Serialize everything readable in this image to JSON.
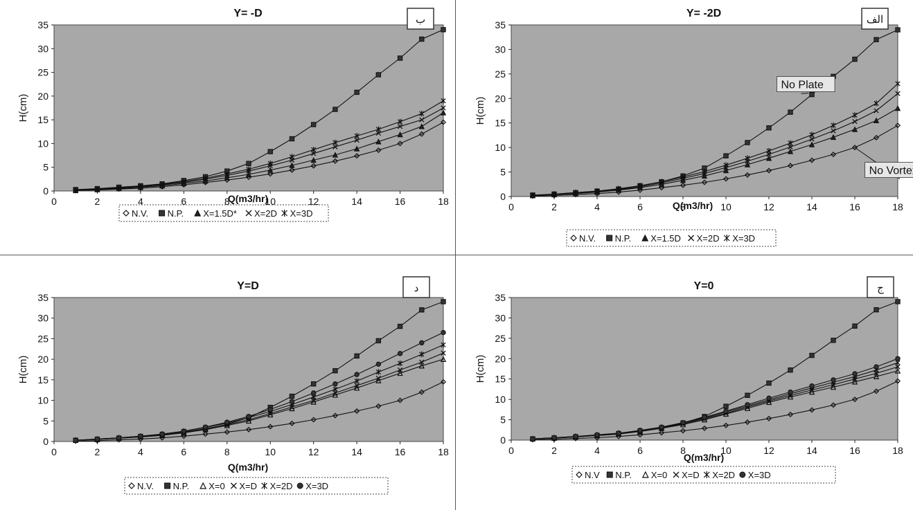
{
  "chart_data": [
    {
      "type": "line",
      "title": "Y= -D",
      "badge": "ب",
      "xlabel": "Q(m3/hr)",
      "ylabel": "H(cm)",
      "xlim": [
        0,
        18
      ],
      "ylim": [
        0,
        35
      ],
      "xticks": [
        "0",
        "2",
        "4",
        "6",
        "8",
        "10",
        "12",
        "14",
        "16",
        "18"
      ],
      "yticks": [
        "0",
        "5",
        "10",
        "15",
        "20",
        "25",
        "30",
        "35"
      ],
      "x": [
        1,
        2,
        3,
        4,
        5,
        6,
        7,
        8,
        9,
        10,
        11,
        12,
        13,
        14,
        15,
        16,
        17,
        18
      ],
      "series": [
        {
          "name": "N.V.",
          "marker": "diamond",
          "values": [
            0.1,
            0.2,
            0.4,
            0.6,
            0.9,
            1.3,
            1.8,
            2.3,
            2.9,
            3.6,
            4.4,
            5.3,
            6.3,
            7.4,
            8.6,
            10.0,
            12.0,
            14.5
          ]
        },
        {
          "name": "N.P.",
          "marker": "square",
          "values": [
            0.3,
            0.5,
            0.8,
            1.1,
            1.5,
            2.2,
            3.0,
            4.2,
            5.8,
            8.3,
            11.0,
            14.0,
            17.2,
            20.8,
            24.5,
            28.0,
            32.0,
            34.0
          ]
        },
        {
          "name": "X=1.5D*",
          "marker": "triangle",
          "values": [
            0.1,
            0.3,
            0.5,
            0.8,
            1.1,
            1.6,
            2.1,
            2.8,
            3.5,
            4.4,
            5.4,
            6.5,
            7.6,
            8.9,
            10.4,
            11.9,
            13.6,
            16.5
          ]
        },
        {
          "name": "X=2D",
          "marker": "x",
          "values": [
            0.2,
            0.4,
            0.6,
            0.9,
            1.3,
            1.8,
            2.5,
            3.3,
            4.2,
            5.3,
            6.5,
            7.9,
            9.3,
            10.7,
            12.2,
            13.6,
            15.0,
            17.5
          ]
        },
        {
          "name": "X=3D",
          "marker": "star",
          "values": [
            0.2,
            0.4,
            0.7,
            1.0,
            1.4,
            2.0,
            2.7,
            3.6,
            4.6,
            5.8,
            7.2,
            8.7,
            10.2,
            11.6,
            13.0,
            14.6,
            16.3,
            19.0
          ]
        }
      ],
      "annotations": [],
      "legend": "bottom",
      "background": "#a8a8a8"
    },
    {
      "type": "line",
      "title": "Y= -2D",
      "badge": "الف",
      "xlabel": "Q(m3/hr)",
      "ylabel": "H(cm)",
      "xlim": [
        0,
        18
      ],
      "ylim": [
        0,
        35
      ],
      "xticks": [
        "0",
        "2",
        "4",
        "6",
        "8",
        "10",
        "12",
        "14",
        "16",
        "18"
      ],
      "yticks": [
        "0",
        "5",
        "10",
        "15",
        "20",
        "25",
        "30",
        "35"
      ],
      "x": [
        1,
        2,
        3,
        4,
        5,
        6,
        7,
        8,
        9,
        10,
        11,
        12,
        13,
        14,
        15,
        16,
        17,
        18
      ],
      "series": [
        {
          "name": "N.V.",
          "marker": "diamond",
          "values": [
            0.1,
            0.2,
            0.4,
            0.6,
            0.9,
            1.3,
            1.8,
            2.3,
            2.9,
            3.6,
            4.4,
            5.3,
            6.3,
            7.4,
            8.6,
            10.0,
            12.0,
            14.5
          ]
        },
        {
          "name": "N.P.",
          "marker": "square",
          "values": [
            0.3,
            0.5,
            0.8,
            1.1,
            1.5,
            2.2,
            3.0,
            4.2,
            5.8,
            8.3,
            11.0,
            14.0,
            17.2,
            20.8,
            24.5,
            28.0,
            32.0,
            34.0
          ]
        },
        {
          "name": "X=1.5D",
          "marker": "triangle",
          "values": [
            0.2,
            0.4,
            0.6,
            0.9,
            1.3,
            1.8,
            2.5,
            3.3,
            4.2,
            5.3,
            6.5,
            7.8,
            9.2,
            10.6,
            12.1,
            13.7,
            15.5,
            18.0
          ]
        },
        {
          "name": "X=2D",
          "marker": "x",
          "values": [
            0.2,
            0.4,
            0.7,
            1.0,
            1.4,
            2.0,
            2.8,
            3.7,
            4.7,
            5.9,
            7.2,
            8.6,
            10.1,
            11.7,
            13.4,
            15.3,
            17.5,
            21.0
          ]
        },
        {
          "name": "X=3D",
          "marker": "star",
          "values": [
            0.2,
            0.5,
            0.8,
            1.1,
            1.6,
            2.2,
            3.0,
            4.0,
            5.1,
            6.4,
            7.8,
            9.3,
            10.9,
            12.6,
            14.5,
            16.6,
            19.0,
            23.0
          ]
        }
      ],
      "annotations": [
        {
          "text": "No Plate",
          "at": [
            12.5,
            22.5
          ],
          "points_to": [
            13.5,
            21.0
          ]
        },
        {
          "text": "No Vortex",
          "at": [
            16.6,
            5.0
          ],
          "points_to": [
            16.0,
            10.0
          ]
        }
      ],
      "legend": "bottom",
      "background": "#a8a8a8"
    },
    {
      "type": "line",
      "title": "Y=D",
      "badge": "د",
      "xlabel": "Q(m3/hr)",
      "ylabel": "H(cm)",
      "xlim": [
        0,
        18
      ],
      "ylim": [
        0,
        35
      ],
      "xticks": [
        "0",
        "2",
        "4",
        "6",
        "8",
        "10",
        "12",
        "14",
        "16",
        "18"
      ],
      "yticks": [
        "0",
        "5",
        "10",
        "15",
        "20",
        "25",
        "30",
        "35"
      ],
      "x": [
        1,
        2,
        3,
        4,
        5,
        6,
        7,
        8,
        9,
        10,
        11,
        12,
        13,
        14,
        15,
        16,
        17,
        18
      ],
      "series": [
        {
          "name": "N.V.",
          "marker": "diamond",
          "values": [
            0.1,
            0.2,
            0.4,
            0.6,
            0.9,
            1.3,
            1.8,
            2.3,
            2.9,
            3.6,
            4.4,
            5.3,
            6.3,
            7.4,
            8.6,
            10.0,
            12.0,
            14.5
          ]
        },
        {
          "name": "N.P.",
          "marker": "square",
          "values": [
            0.3,
            0.5,
            0.8,
            1.1,
            1.5,
            2.2,
            3.0,
            4.2,
            5.8,
            8.3,
            11.0,
            14.0,
            17.2,
            20.8,
            24.5,
            28.0,
            32.0,
            34.0
          ]
        },
        {
          "name": "X=0",
          "marker": "triangle-open",
          "values": [
            0.3,
            0.5,
            0.8,
            1.1,
            1.5,
            2.1,
            2.9,
            3.9,
            5.0,
            6.5,
            8.0,
            9.6,
            11.3,
            13.0,
            14.8,
            16.6,
            18.4,
            20.0
          ]
        },
        {
          "name": "X=D",
          "marker": "x",
          "values": [
            0.3,
            0.5,
            0.8,
            1.2,
            1.6,
            2.3,
            3.1,
            4.1,
            5.3,
            6.8,
            8.4,
            10.0,
            11.8,
            13.6,
            15.4,
            17.4,
            19.3,
            21.5
          ]
        },
        {
          "name": "X=2D",
          "marker": "star",
          "values": [
            0.3,
            0.6,
            0.9,
            1.3,
            1.8,
            2.5,
            3.4,
            4.5,
            5.8,
            7.3,
            9.0,
            10.8,
            12.7,
            14.7,
            16.9,
            19.0,
            21.2,
            23.5
          ]
        },
        {
          "name": "X=3D",
          "marker": "circle",
          "values": [
            0.3,
            0.6,
            0.9,
            1.3,
            1.8,
            2.5,
            3.5,
            4.7,
            6.1,
            7.8,
            9.7,
            11.8,
            14.0,
            16.3,
            18.8,
            21.4,
            24.0,
            26.5
          ]
        }
      ],
      "annotations": [],
      "legend": "bottom",
      "background": "#a8a8a8"
    },
    {
      "type": "line",
      "title": "Y=0",
      "badge": "ج",
      "xlabel": "Q(m3/hr)",
      "ylabel": "H(cm)",
      "xlim": [
        0,
        18
      ],
      "ylim": [
        0,
        35
      ],
      "xticks": [
        "0",
        "2",
        "4",
        "6",
        "8",
        "10",
        "12",
        "14",
        "16",
        "18"
      ],
      "yticks": [
        "0",
        "5",
        "10",
        "15",
        "20",
        "25",
        "30",
        "35"
      ],
      "x": [
        1,
        2,
        3,
        4,
        5,
        6,
        7,
        8,
        9,
        10,
        11,
        12,
        13,
        14,
        15,
        16,
        17,
        18
      ],
      "series": [
        {
          "name": "N.V",
          "marker": "diamond",
          "values": [
            0.1,
            0.2,
            0.4,
            0.6,
            0.9,
            1.3,
            1.8,
            2.3,
            2.9,
            3.6,
            4.4,
            5.3,
            6.3,
            7.4,
            8.6,
            10.0,
            12.0,
            14.5
          ]
        },
        {
          "name": "N.P.",
          "marker": "square",
          "values": [
            0.3,
            0.5,
            0.8,
            1.1,
            1.5,
            2.2,
            3.0,
            4.2,
            5.8,
            8.3,
            11.0,
            14.0,
            17.2,
            20.8,
            24.5,
            28.0,
            32.0,
            34.0
          ]
        },
        {
          "name": "X=0",
          "marker": "triangle-open",
          "values": [
            0.3,
            0.5,
            0.8,
            1.1,
            1.5,
            2.1,
            2.9,
            3.8,
            5.0,
            6.4,
            7.8,
            9.3,
            10.6,
            11.8,
            13.0,
            14.3,
            15.6,
            17.0
          ]
        },
        {
          "name": "X=D",
          "marker": "x",
          "values": [
            0.3,
            0.5,
            0.8,
            1.2,
            1.6,
            2.2,
            3.0,
            4.0,
            5.2,
            6.6,
            8.1,
            9.6,
            11.0,
            12.3,
            13.6,
            15.0,
            16.4,
            18.0
          ]
        },
        {
          "name": "X=2D",
          "marker": "star",
          "values": [
            0.3,
            0.6,
            0.9,
            1.2,
            1.7,
            2.3,
            3.1,
            4.2,
            5.4,
            6.9,
            8.4,
            9.9,
            11.4,
            12.8,
            14.2,
            15.6,
            17.2,
            19.0
          ]
        },
        {
          "name": "X=3D",
          "marker": "circle",
          "values": [
            0.3,
            0.6,
            0.9,
            1.3,
            1.7,
            2.4,
            3.2,
            4.3,
            5.6,
            7.1,
            8.7,
            10.3,
            11.8,
            13.3,
            14.8,
            16.3,
            18.0,
            20.0
          ]
        }
      ],
      "annotations": [],
      "legend": "bottom",
      "background": "#a8a8a8"
    }
  ]
}
